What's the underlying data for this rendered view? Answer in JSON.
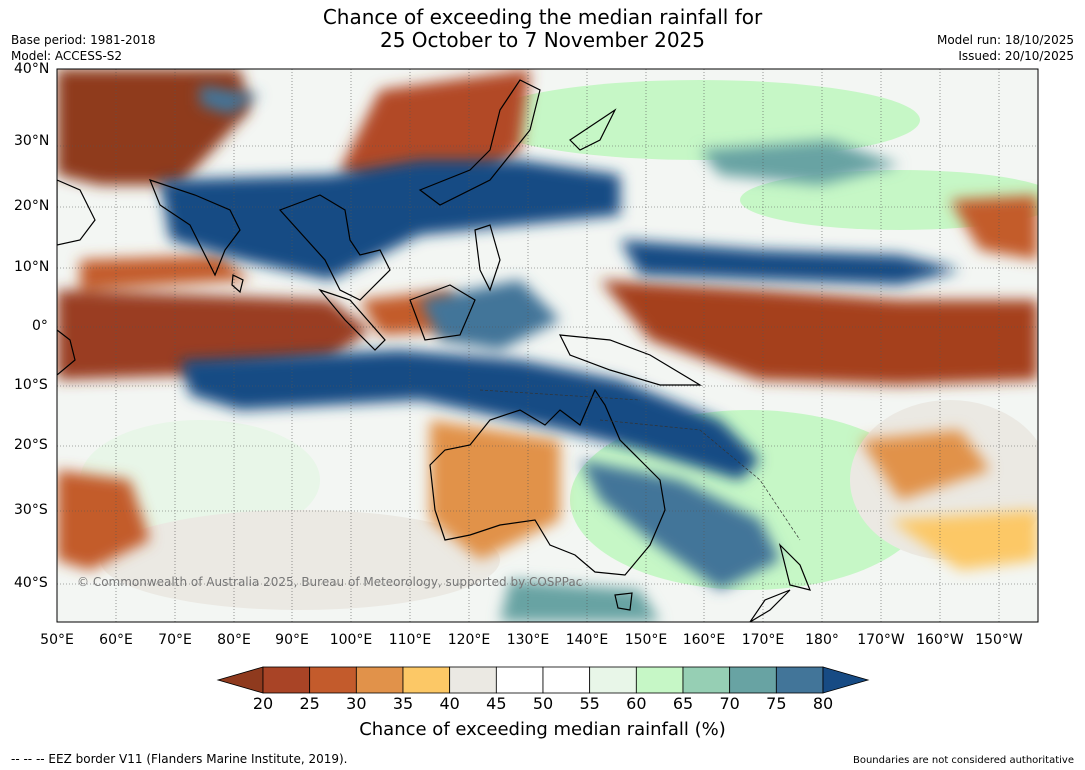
{
  "title": {
    "line1": "Chance of exceeding the median rainfall for",
    "line2": "25 October to 7 November 2025"
  },
  "meta_left": {
    "base_period": "Base period: 1981-2018",
    "model": "Model: ACCESS-S2"
  },
  "meta_right": {
    "model_run": "Model run: 18/10/2025",
    "issued": "Issued: 20/10/2025"
  },
  "lat_labels": [
    "40°N",
    "30°N",
    "20°N",
    "10°N",
    "0°",
    "10°S",
    "20°S",
    "30°S",
    "40°S"
  ],
  "lon_labels": [
    "50°E",
    "60°E",
    "70°E",
    "80°E",
    "90°E",
    "100°E",
    "110°E",
    "120°E",
    "130°E",
    "140°E",
    "150°E",
    "160°E",
    "170°E",
    "180°",
    "170°W",
    "160°W",
    "150°W"
  ],
  "colorbar": {
    "ticks": [
      "20",
      "25",
      "30",
      "35",
      "40",
      "45",
      "50",
      "55",
      "60",
      "65",
      "70",
      "75",
      "80"
    ],
    "colors": [
      "#8f3a1e",
      "#a94426",
      "#c35b2c",
      "#e1924a",
      "#fcc866",
      "#ebe9e3",
      "#ffffff",
      "#ffffff",
      "#e8f6e8",
      "#c6f7c6",
      "#96cfb4",
      "#68a3a3",
      "#427599",
      "#174b84"
    ],
    "title": "Chance of exceeding median rainfall (%)"
  },
  "copyright": "© Commonwealth of Australia 2025, Bureau of Meteorology, supported by COSPPac",
  "footer": {
    "eez": "--  --  -- EEZ border V11 (Flanders Marine Institute, 2019).",
    "disclaimer": "Boundaries are not considered authoritative"
  }
}
